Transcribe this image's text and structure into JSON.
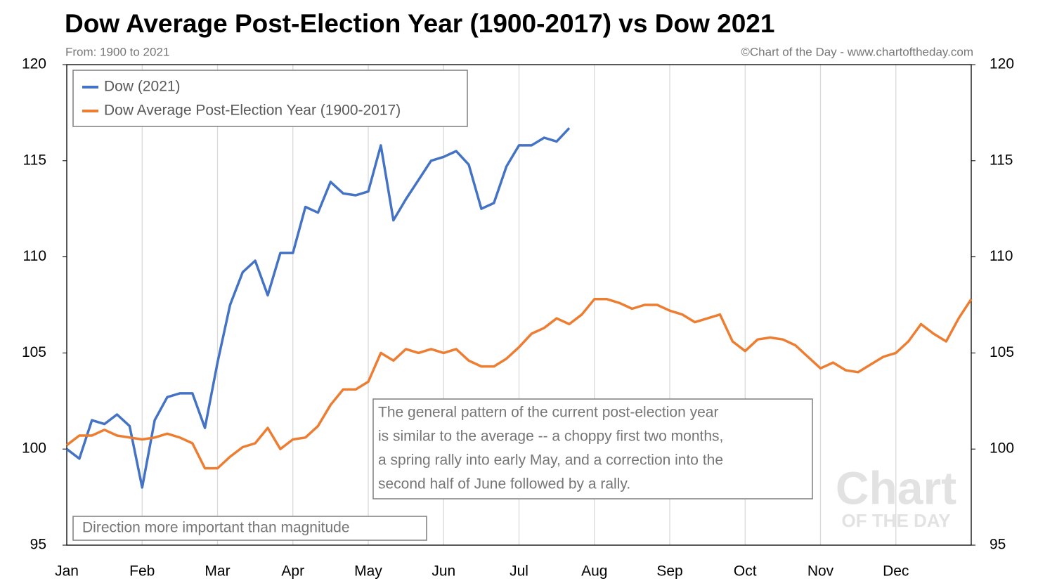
{
  "chart_data": {
    "type": "line",
    "title": "Dow Average Post-Election Year (1900-2017) vs Dow 2021",
    "subtitle": "From: 1900 to 2021",
    "credit": "©Chart of the Day - www.chartoftheday.com",
    "categories": [
      "Jan",
      null,
      null,
      null,
      null,
      null,
      "Feb",
      null,
      null,
      null,
      null,
      null,
      "Mar",
      null,
      null,
      null,
      null,
      null,
      "Apr",
      null,
      null,
      null,
      null,
      null,
      "May",
      null,
      null,
      null,
      null,
      null,
      "Jun",
      null,
      null,
      null,
      null,
      null,
      "Jul",
      null,
      null,
      null,
      null,
      null,
      "Aug",
      null,
      null,
      null,
      null,
      null,
      "Sep",
      null,
      null,
      null,
      null,
      null,
      "Oct",
      null,
      null,
      null,
      null,
      null,
      "Nov",
      null,
      null,
      null,
      null,
      null,
      "Dec",
      null,
      null,
      null,
      null,
      null,
      null
    ],
    "series": [
      {
        "name": "Dow (2021)",
        "color": "#4472c4",
        "axis": "y",
        "values": [
          100,
          99.5,
          101.5,
          101.3,
          101.8,
          101.2,
          98,
          101.5,
          102.7,
          102.9,
          102.9,
          101.1,
          104.5,
          107.5,
          109.2,
          109.8,
          108,
          110.2,
          110.2,
          112.6,
          112.3,
          113.9,
          113.3,
          113.2,
          113.4,
          115.8,
          111.9,
          113,
          114,
          115,
          115.2,
          115.5,
          114.8,
          112.5,
          112.8,
          114.7,
          115.8,
          115.8,
          116.2,
          116,
          116.7,
          null,
          null,
          null,
          null,
          null,
          null,
          null,
          null,
          null,
          null,
          null,
          null,
          null,
          null,
          null,
          null,
          null,
          null,
          null,
          null,
          null,
          null,
          null,
          null,
          null,
          null,
          null,
          null,
          null,
          null,
          null,
          null
        ]
      },
      {
        "name": "Dow Average Post-Election Year (1900-2017)",
        "color": "#ed7d31",
        "axis": "y",
        "values": [
          100.2,
          100.7,
          100.7,
          101,
          100.7,
          100.6,
          100.5,
          100.6,
          100.8,
          100.6,
          100.3,
          99,
          99,
          99.6,
          100.1,
          100.3,
          101.1,
          100,
          100.5,
          100.6,
          101.2,
          102.3,
          103.1,
          103.1,
          103.5,
          105,
          104.6,
          105.2,
          105,
          105.2,
          105,
          105.2,
          104.6,
          104.3,
          104.3,
          104.7,
          105.3,
          106,
          106.3,
          106.8,
          106.5,
          107,
          107.8,
          107.8,
          107.6,
          107.3,
          107.5,
          107.5,
          107.2,
          107,
          106.6,
          106.8,
          107,
          105.6,
          105.1,
          105.7,
          105.8,
          105.7,
          105.4,
          104.8,
          104.2,
          104.5,
          104.1,
          104,
          104.4,
          104.8,
          105,
          105.6,
          106.5,
          106,
          105.6,
          106.8,
          107.8
        ]
      }
    ],
    "ylim": [
      95,
      120
    ],
    "yticks": [
      95,
      100,
      105,
      110,
      115,
      120
    ],
    "y2lim": [
      95,
      120
    ],
    "y2ticks": [
      95,
      100,
      105,
      110,
      115,
      120
    ],
    "grid": true,
    "legend": "upper left",
    "annotation": [
      "The general pattern of the current post-election year",
      "is similar to the average -- a choppy first two months,",
      "a spring rally into early May, and a correction into the",
      "second half of June followed by a rally."
    ],
    "note": "Direction more important than magnitude",
    "watermark": [
      "Chart",
      "OF THE DAY"
    ]
  }
}
